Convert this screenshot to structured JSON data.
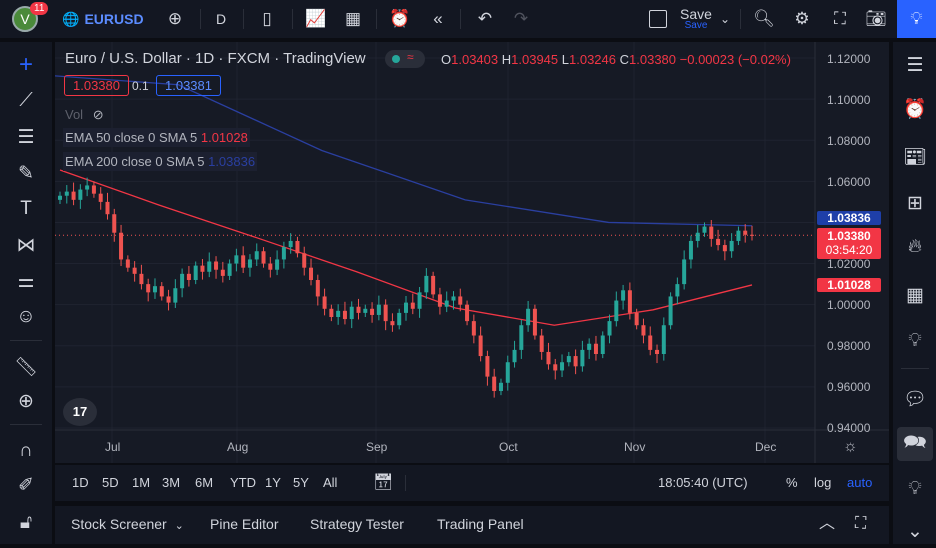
{
  "topbar": {
    "avatar_letter": "V",
    "notifications": "11",
    "symbol": "EURUSD",
    "interval": "D",
    "save_label": "Save",
    "save_sub": "Save"
  },
  "legend": {
    "title": "Euro / U.S. Dollar · 1D · FXCM · TradingView",
    "o_label": "O",
    "o": "1.03403",
    "h_label": "H",
    "h": "1.03945",
    "l_label": "L",
    "l": "1.03246",
    "c_label": "C",
    "c": "1.03380",
    "change": "−0.00023 (−0.02%)",
    "sell_price": "1.03380",
    "spread": "0.1",
    "buy_price": "1.03381",
    "vol_label": "Vol",
    "ema50_label": "EMA 50 close 0 SMA 5",
    "ema50_value": "1.01028",
    "ema200_label": "EMA 200 close 0 SMA 5",
    "ema200_value": "1.03836"
  },
  "price_axis": [
    "1.12000",
    "1.10000",
    "1.08000",
    "1.06000",
    "1.02000",
    "1.00000",
    "0.98000",
    "0.96000",
    "0.94000"
  ],
  "price_tags": {
    "ema200": "1.03836",
    "last": "1.03380",
    "countdown": "03:54:20",
    "ema50": "1.01028"
  },
  "time_axis": [
    "Jul",
    "Aug",
    "Sep",
    "Oct",
    "Nov",
    "Dec"
  ],
  "bottom": {
    "ranges": [
      "1D",
      "5D",
      "1M",
      "3M",
      "6M",
      "YTD",
      "1Y",
      "5Y",
      "All"
    ],
    "clock": "18:05:40 (UTC)",
    "percent": "%",
    "log": "log",
    "auto": "auto"
  },
  "panels": [
    "Stock Screener",
    "Pine Editor",
    "Strategy Tester",
    "Trading Panel"
  ],
  "colors": {
    "up": "#26a69a",
    "down": "#ef5350",
    "ema50": "#f23645",
    "ema200": "#2a3fa0",
    "accent": "#2962ff"
  },
  "chart_data": {
    "type": "candlestick",
    "ylim": [
      0.93,
      1.125
    ],
    "closes": [
      1.053,
      1.055,
      1.051,
      1.056,
      1.058,
      1.054,
      1.05,
      1.044,
      1.035,
      1.022,
      1.018,
      1.015,
      1.01,
      1.006,
      1.009,
      1.004,
      1.001,
      1.008,
      1.015,
      1.012,
      1.019,
      1.016,
      1.021,
      1.017,
      1.014,
      1.02,
      1.024,
      1.018,
      1.022,
      1.026,
      1.02,
      1.017,
      1.022,
      1.028,
      1.031,
      1.025,
      1.018,
      1.012,
      1.004,
      0.998,
      0.994,
      0.997,
      0.993,
      0.999,
      0.996,
      0.998,
      0.995,
      1.0,
      0.992,
      0.99,
      0.996,
      1.001,
      0.998,
      1.006,
      1.014,
      1.005,
      0.999,
      1.002,
      1.004,
      1.0,
      0.992,
      0.985,
      0.975,
      0.965,
      0.958,
      0.962,
      0.972,
      0.978,
      0.99,
      0.998,
      0.985,
      0.977,
      0.971,
      0.968,
      0.972,
      0.975,
      0.97,
      0.978,
      0.981,
      0.976,
      0.985,
      0.992,
      1.002,
      1.007,
      0.996,
      0.99,
      0.985,
      0.978,
      0.976,
      0.99,
      1.004,
      1.01,
      1.022,
      1.031,
      1.035,
      1.038,
      1.032,
      1.029,
      1.026,
      1.031,
      1.036,
      1.034,
      1.0338
    ],
    "ema50": [
      1.0655,
      1.0485,
      1.0324,
      1.016,
      0.9984,
      0.99,
      0.9975,
      1.0096
    ],
    "ema200": [
      1.112,
      1.107,
      1.075,
      1.051,
      1.04,
      1.0384
    ],
    "last_price": 1.0338
  }
}
